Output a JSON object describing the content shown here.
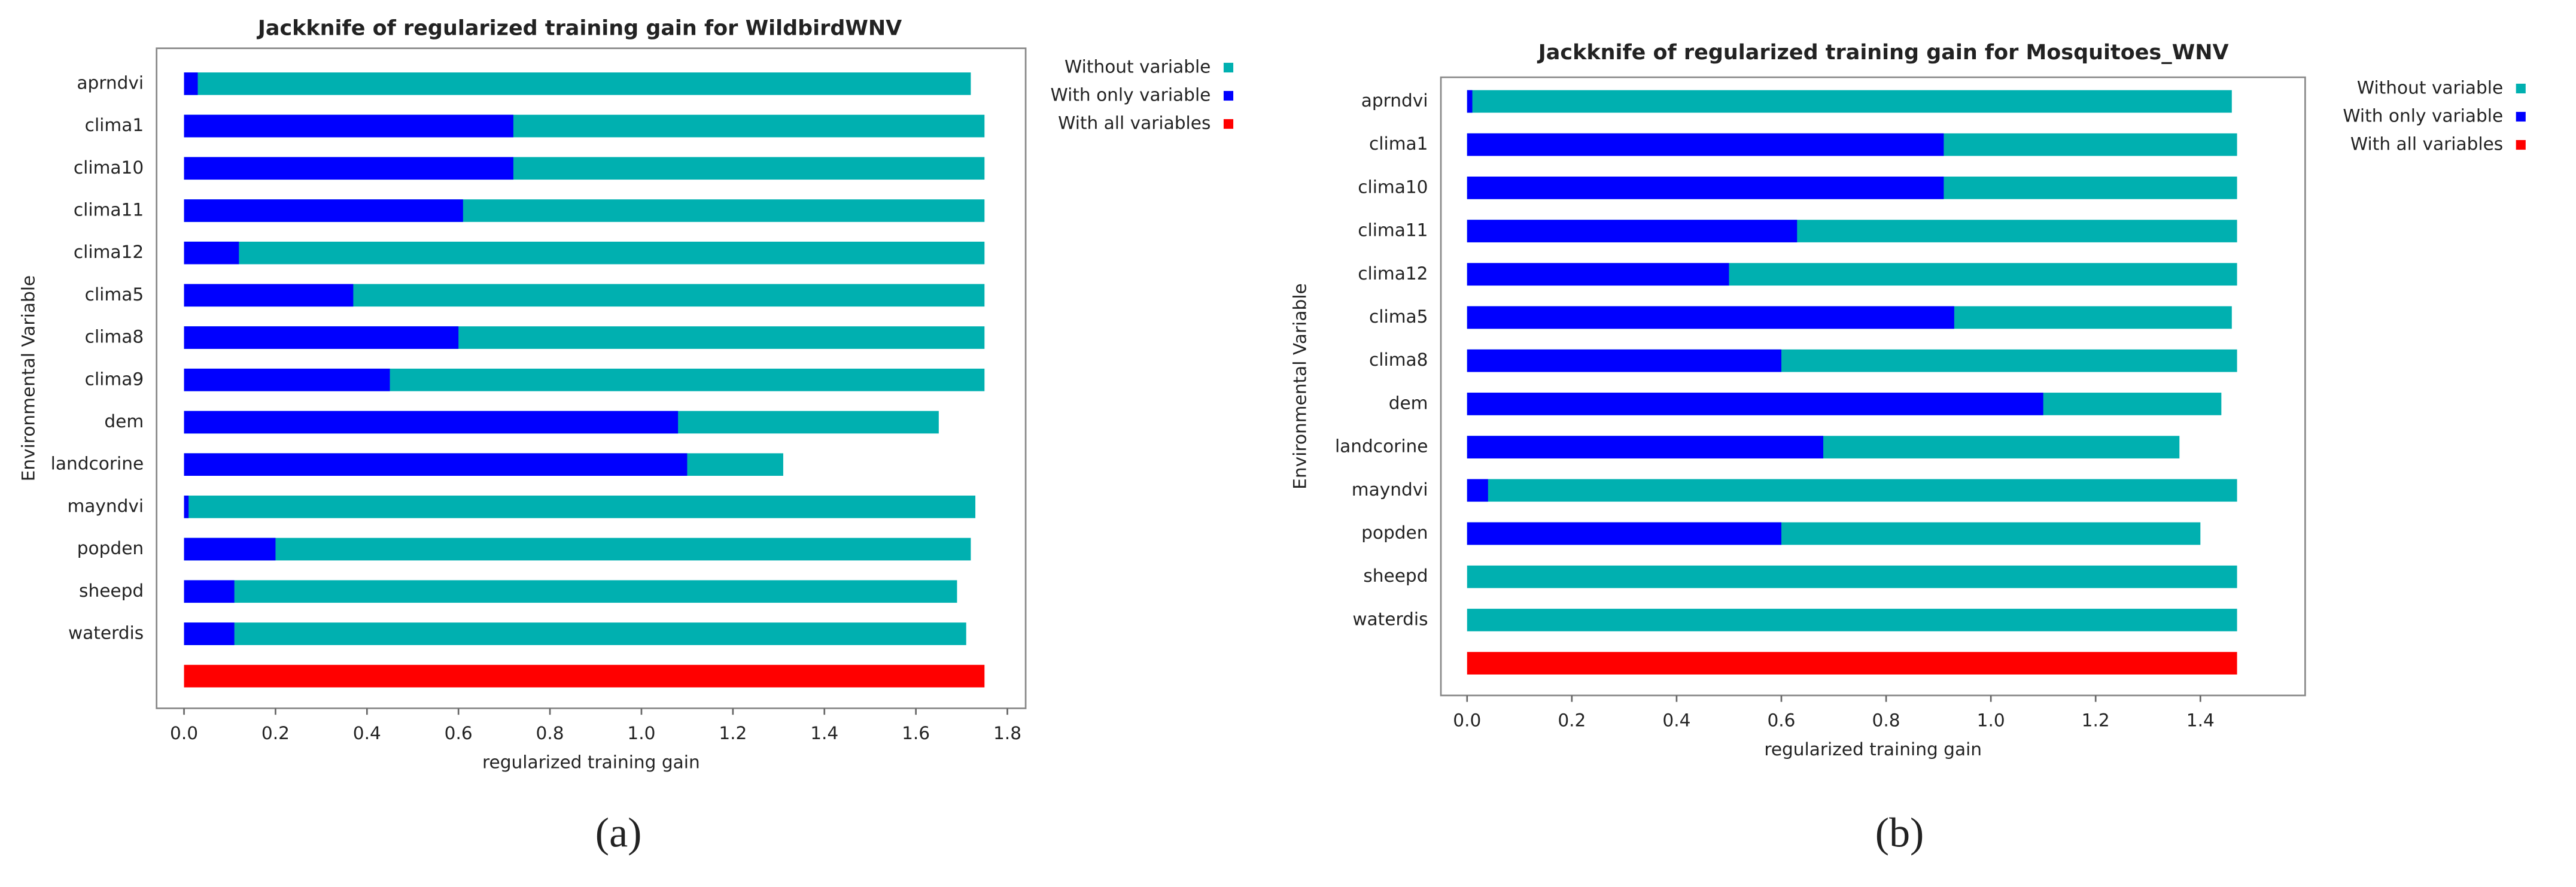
{
  "chart_data": [
    {
      "type": "bar",
      "orientation": "horizontal",
      "title": "Jackknife of regularized training gain for WildbirdWNV",
      "x_label": "regularized training gain",
      "y_label": "Environmental Variable",
      "caption": "(a)",
      "categories": [
        "aprndvi",
        "clima1",
        "clima10",
        "clima11",
        "clima12",
        "clima5",
        "clima8",
        "clima9",
        "dem",
        "landcorine",
        "mayndvi",
        "popden",
        "sheepd",
        "waterdis",
        null
      ],
      "series": [
        {
          "name": "Without variable",
          "color": "#00b0b0",
          "values": [
            1.72,
            1.75,
            1.75,
            1.75,
            1.75,
            1.75,
            1.75,
            1.75,
            1.65,
            1.31,
            1.73,
            1.72,
            1.69,
            1.71,
            null
          ]
        },
        {
          "name": "With only variable",
          "color": "#0000ff",
          "values": [
            0.03,
            0.72,
            0.72,
            0.61,
            0.12,
            0.37,
            0.6,
            0.45,
            1.08,
            1.1,
            0.01,
            0.2,
            0.11,
            0.11,
            null
          ]
        },
        {
          "name": "With all variables",
          "color": "#ff0000",
          "values": [
            null,
            null,
            null,
            null,
            null,
            null,
            null,
            null,
            null,
            null,
            null,
            null,
            null,
            null,
            1.75
          ]
        }
      ],
      "xlim": [
        -0.06,
        1.84
      ],
      "xticks": [
        {
          "value": 0,
          "label": "0.0"
        },
        0.2,
        0.4,
        0.6,
        0.8,
        {
          "value": 1,
          "label": "1.0"
        },
        1.2,
        1.4,
        1.6,
        1.8
      ]
    },
    {
      "type": "bar",
      "orientation": "horizontal",
      "title": "Jackknife of regularized training gain for Mosquitoes_WNV",
      "x_label": "regularized training gain",
      "y_label": "Environmental Variable",
      "caption": "(b)",
      "categories": [
        "aprndvi",
        "clima1",
        "clima10",
        "clima11",
        "clima12",
        "clima5",
        "clima8",
        "dem",
        "landcorine",
        "mayndvi",
        "popden",
        "sheepd",
        "waterdis",
        null
      ],
      "series": [
        {
          "name": "Without variable",
          "color": "#00b0b0",
          "values": [
            1.46,
            1.47,
            1.47,
            1.47,
            1.47,
            1.46,
            1.47,
            1.44,
            1.36,
            1.47,
            1.4,
            1.47,
            1.47,
            null
          ]
        },
        {
          "name": "With only variable",
          "color": "#0000ff",
          "values": [
            0.01,
            0.91,
            0.91,
            0.63,
            0.5,
            0.93,
            0.6,
            1.1,
            0.68,
            0.04,
            0.6,
            0,
            0,
            null
          ]
        },
        {
          "name": "With all variables",
          "color": "#ff0000",
          "values": [
            null,
            null,
            null,
            null,
            null,
            null,
            null,
            null,
            null,
            null,
            null,
            null,
            null,
            1.47
          ]
        }
      ],
      "xlim": [
        -0.05,
        1.6
      ],
      "xticks": [
        {
          "value": 0,
          "label": "0.0"
        },
        0.2,
        0.4,
        0.6,
        0.8,
        {
          "value": 1,
          "label": "1.0"
        },
        1.2,
        1.4
      ]
    }
  ]
}
